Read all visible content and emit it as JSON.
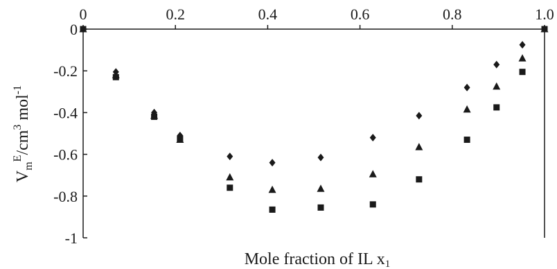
{
  "chart_data": {
    "type": "scatter",
    "xlabel": "Mole fraction of IL x",
    "xlabel_subscript": "1",
    "ylabel": {
      "base": "V",
      "sub": "m",
      "sup": "E",
      "unit": "/cm",
      "unit_sup": "3",
      "unit2": " mol",
      "unit2_sup": "-1"
    },
    "xlim": [
      0,
      1
    ],
    "ylim": [
      -1,
      0
    ],
    "x_ticks": [
      {
        "value": 0,
        "label": "0"
      },
      {
        "value": 0.2,
        "label": "0.2"
      },
      {
        "value": 0.4,
        "label": "0.4"
      },
      {
        "value": 0.6,
        "label": "0.6"
      },
      {
        "value": 0.8,
        "label": "0.8"
      },
      {
        "value": 1.0,
        "label": "1.0"
      }
    ],
    "y_ticks": [
      {
        "value": 0,
        "label": "0"
      },
      {
        "value": -0.2,
        "label": "-0.2"
      },
      {
        "value": -0.4,
        "label": "-0.4"
      },
      {
        "value": -0.6,
        "label": "-0.6"
      },
      {
        "value": -0.8,
        "label": "-0.8"
      },
      {
        "value": -1,
        "label": "-1"
      }
    ],
    "x_axis_position": "top",
    "grid": false,
    "series": [
      {
        "marker": "diamond",
        "color": "#1a1a1a",
        "points": [
          [
            0,
            0
          ],
          [
            0.071,
            -0.205
          ],
          [
            0.154,
            -0.4
          ],
          [
            0.21,
            -0.51
          ],
          [
            0.318,
            -0.61
          ],
          [
            0.41,
            -0.64
          ],
          [
            0.515,
            -0.615
          ],
          [
            0.628,
            -0.52
          ],
          [
            0.728,
            -0.415
          ],
          [
            0.832,
            -0.28
          ],
          [
            0.896,
            -0.17
          ],
          [
            0.952,
            -0.075
          ],
          [
            1.0,
            0
          ]
        ]
      },
      {
        "marker": "triangle",
        "color": "#1a1a1a",
        "points": [
          [
            0,
            0
          ],
          [
            0.071,
            -0.22
          ],
          [
            0.154,
            -0.415
          ],
          [
            0.21,
            -0.53
          ],
          [
            0.318,
            -0.71
          ],
          [
            0.41,
            -0.77
          ],
          [
            0.515,
            -0.765
          ],
          [
            0.628,
            -0.695
          ],
          [
            0.728,
            -0.565
          ],
          [
            0.832,
            -0.385
          ],
          [
            0.896,
            -0.275
          ],
          [
            0.952,
            -0.14
          ],
          [
            1.0,
            0
          ]
        ]
      },
      {
        "marker": "square",
        "color": "#1a1a1a",
        "points": [
          [
            0,
            0
          ],
          [
            0.071,
            -0.23
          ],
          [
            0.154,
            -0.42
          ],
          [
            0.21,
            -0.525
          ],
          [
            0.318,
            -0.76
          ],
          [
            0.41,
            -0.865
          ],
          [
            0.515,
            -0.855
          ],
          [
            0.628,
            -0.84
          ],
          [
            0.728,
            -0.72
          ],
          [
            0.832,
            -0.53
          ],
          [
            0.896,
            -0.375
          ],
          [
            0.952,
            -0.205
          ],
          [
            1.0,
            0
          ]
        ]
      }
    ]
  }
}
